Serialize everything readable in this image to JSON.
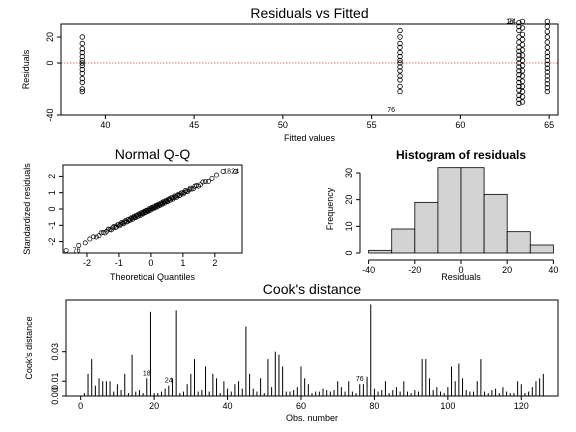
{
  "chart_data": [
    {
      "type": "scatter",
      "title": "Residuals vs Fitted",
      "xlabel": "Fitted values",
      "ylabel": "Residuals",
      "xlim": [
        37.5,
        65.5
      ],
      "ylim": [
        -40,
        30
      ],
      "xticks": [
        40,
        45,
        50,
        55,
        60,
        65
      ],
      "yticks": [
        -40,
        0,
        20
      ],
      "reference_line": {
        "y": 0,
        "color": "#e04040",
        "style": "dotted"
      },
      "groups": [
        {
          "x": 38.7,
          "y": [
            20,
            15,
            11,
            8,
            5,
            2,
            0,
            -2,
            -5,
            -8,
            -12,
            -15,
            -20,
            -22
          ]
        },
        {
          "x": 56.6,
          "y": [
            25,
            20,
            15,
            12,
            8,
            5,
            2,
            0,
            -3,
            -6,
            -10,
            -13,
            -18,
            -22
          ]
        },
        {
          "x": 63.3,
          "y": [
            31,
            28,
            25,
            20,
            16,
            12,
            9,
            6,
            3,
            0,
            -3,
            -6,
            -9,
            -12,
            -15,
            -18,
            -21,
            -25,
            -28,
            -31
          ]
        },
        {
          "x": 63.5,
          "y": [
            32,
            27,
            22,
            18,
            14,
            10,
            6,
            2,
            -2,
            -6,
            -10,
            -14,
            -18,
            -22,
            -26,
            -30
          ]
        },
        {
          "x": 64.9,
          "y": [
            32,
            28,
            24,
            20,
            16,
            12,
            8,
            5,
            2,
            -1,
            -4,
            -7,
            -10,
            -13,
            -16,
            -19,
            -22
          ]
        }
      ],
      "annotations": [
        {
          "text": "76",
          "x": 56.6,
          "y": -36
        },
        {
          "text": "24",
          "x": 63.4,
          "y": 32
        },
        {
          "text": "18",
          "x": 63.3,
          "y": 32
        }
      ]
    },
    {
      "type": "scatter",
      "title": "Normal Q-Q",
      "xlabel": "Theoretical Quantiles",
      "ylabel": "Standardized residuals",
      "xlim": [
        -2.75,
        2.85
      ],
      "ylim": [
        -2.7,
        2.7
      ],
      "xticks": [
        -2,
        -1,
        0,
        1,
        2
      ],
      "yticks": [
        -2,
        -1,
        0,
        1,
        2
      ],
      "n_points": 125,
      "annotations": [
        {
          "text": "76",
          "x": -2.6,
          "y": -2.55
        },
        {
          "text": "18",
          "x": 2.2,
          "y": 2.3
        },
        {
          "text": "24",
          "x": 2.45,
          "y": 2.3
        }
      ]
    },
    {
      "type": "bar",
      "title": "Histogram of residuals",
      "xlabel": "Residuals",
      "ylabel": "Frequency",
      "xlim": [
        -42,
        42
      ],
      "ylim": [
        0,
        33
      ],
      "xticks": [
        -40,
        -20,
        0,
        20,
        40
      ],
      "yticks": [
        0,
        10,
        20,
        30
      ],
      "bins": [
        {
          "from": -40,
          "to": -30,
          "count": 1
        },
        {
          "from": -30,
          "to": -20,
          "count": 9
        },
        {
          "from": -20,
          "to": -10,
          "count": 19
        },
        {
          "from": -10,
          "to": 0,
          "count": 32
        },
        {
          "from": 0,
          "to": 10,
          "count": 32
        },
        {
          "from": 10,
          "to": 20,
          "count": 22
        },
        {
          "from": 20,
          "to": 30,
          "count": 8
        },
        {
          "from": 30,
          "to": 40,
          "count": 3
        }
      ]
    },
    {
      "type": "bar",
      "title": "Cook's distance",
      "xlabel": "Obs. number",
      "ylabel": "Cook's distance",
      "xlim": [
        -4,
        130
      ],
      "ylim": [
        0,
        0.065
      ],
      "xticks": [
        0,
        20,
        40,
        60,
        80,
        100,
        120
      ],
      "yticks": [
        0.0,
        0.01,
        0.03
      ],
      "ytick_labels": [
        "0.00",
        "0.01",
        "0.03"
      ],
      "values": [
        0.002,
        0.015,
        0.025,
        0.007,
        0.012,
        0.01,
        0.01,
        0.01,
        0.003,
        0.008,
        0.004,
        0.015,
        0.002,
        0.028,
        0.003,
        0.004,
        0.002,
        0.012,
        0.057,
        0.002,
        0.002,
        0.003,
        0.005,
        0.007,
        0.012,
        0.058,
        0.002,
        0.003,
        0.008,
        0.015,
        0.025,
        0.003,
        0.004,
        0.02,
        0.003,
        0.015,
        0.012,
        0.002,
        0.01,
        0.005,
        0.003,
        0.008,
        0.01,
        0.005,
        0.047,
        0.015,
        0.005,
        0.003,
        0.012,
        0.002,
        0.025,
        0.006,
        0.03,
        0.028,
        0.02,
        0.003,
        0.003,
        0.004,
        0.006,
        0.02,
        0.012,
        0.008,
        0.002,
        0.003,
        0.003,
        0.005,
        0.004,
        0.003,
        0.004,
        0.01,
        0.006,
        0.003,
        0.01,
        0.003,
        0.002,
        0.008,
        0.008,
        0.013,
        0.062,
        0.005,
        0.003,
        0.004,
        0.01,
        0.002,
        0.004,
        0.006,
        0.003,
        0.01,
        0.003,
        0.002,
        0.004,
        0.003,
        0.025,
        0.025,
        0.012,
        0.004,
        0.006,
        0.003,
        0.002,
        0.006,
        0.02,
        0.01,
        0.022,
        0.012,
        0.004,
        0.003,
        0.003,
        0.01,
        0.025,
        0.003,
        0.002,
        0.004,
        0.005,
        0.002,
        0.006,
        0.003,
        0.002,
        0.002,
        0.01,
        0.008,
        0.002,
        0.003,
        0.006,
        0.01,
        0.012,
        0.015
      ],
      "annotations": [
        {
          "text": "18",
          "x": 18
        },
        {
          "text": "24",
          "x": 24
        },
        {
          "text": "76",
          "x": 76
        }
      ]
    }
  ]
}
